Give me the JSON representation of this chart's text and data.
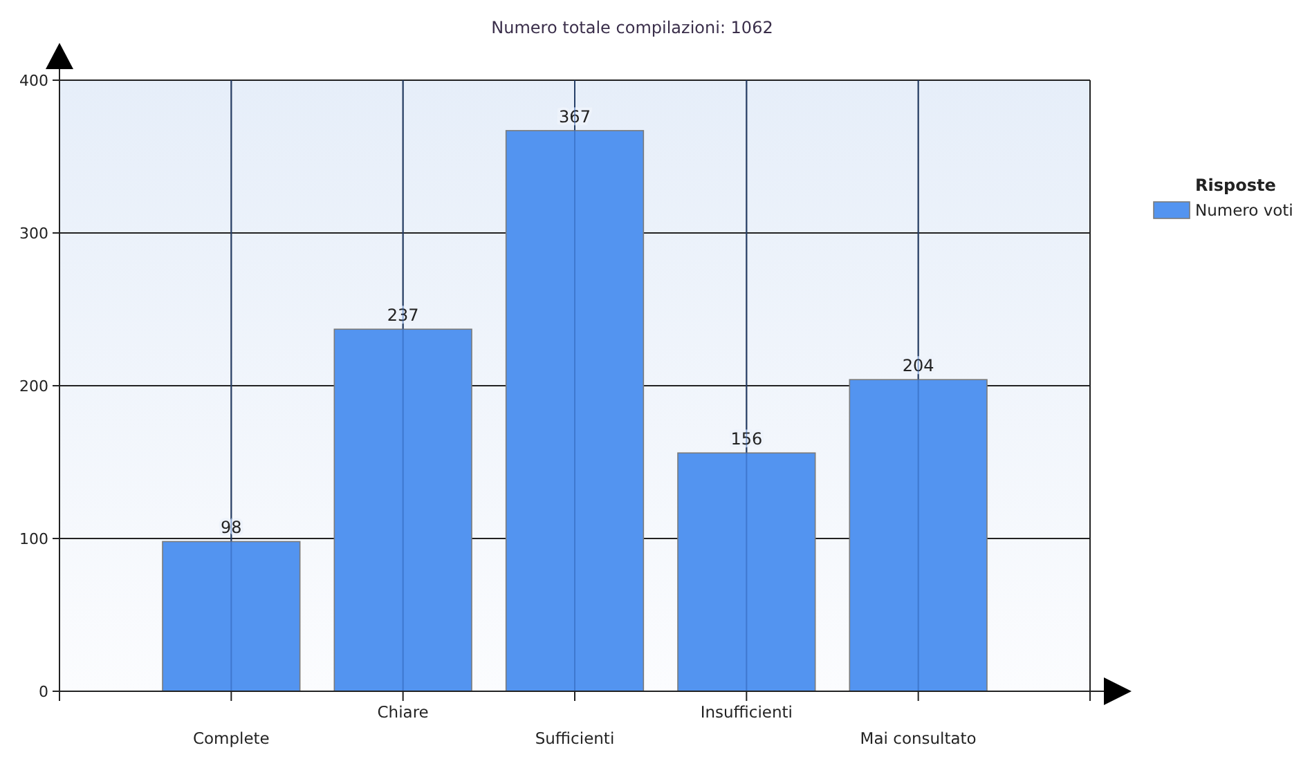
{
  "chart_data": {
    "type": "bar",
    "title": "Numero totale compilazioni: 1062",
    "categories": [
      "Complete",
      "Chiare",
      "Sufficienti",
      "Insufficienti",
      "Mai consultato"
    ],
    "series": [
      {
        "name": "Numero voti",
        "color": "#5394f0",
        "values": [
          98,
          237,
          367,
          156,
          204
        ]
      }
    ],
    "ylim": [
      0,
      400
    ],
    "yticks": [
      0,
      100,
      200,
      300,
      400
    ],
    "grid": true,
    "data_labels": true,
    "legend": "top right",
    "legend_title": "Risposte"
  }
}
